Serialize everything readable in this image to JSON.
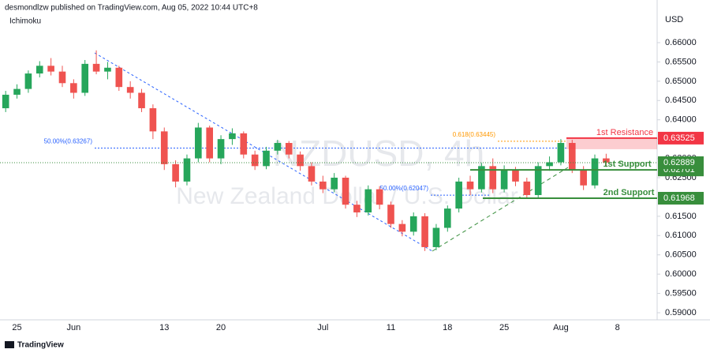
{
  "header": {
    "publisher": "desmondlzw published on TradingView.com, Aug 05, 2022 10:44 UTC+8",
    "indicator": "Ichimoku"
  },
  "chart_data": {
    "type": "candlestick",
    "title": "NZDUSD, 4h",
    "subtitle": "New Zealand Dollar / U.S. Dollar",
    "currency": "USD",
    "categories": [
      null,
      "25",
      null,
      null,
      null,
      null,
      "Jun",
      null,
      null,
      null,
      null,
      null,
      null,
      null,
      "13",
      null,
      null,
      null,
      null,
      "20",
      null,
      null,
      null,
      null,
      null,
      null,
      null,
      null,
      "Jul",
      null,
      null,
      null,
      null,
      null,
      "11",
      null,
      null,
      null,
      null,
      "18",
      null,
      null,
      null,
      null,
      "25",
      null,
      null,
      null,
      null,
      "Aug",
      null,
      null,
      null,
      null,
      "8",
      null,
      null,
      null
    ],
    "open": [
      0.643,
      0.6465,
      0.648,
      0.652,
      0.654,
      0.6525,
      0.6495,
      0.647,
      0.6545,
      0.6525,
      0.6535,
      0.6485,
      0.647,
      0.643,
      0.637,
      0.6285,
      0.624,
      0.63,
      0.638,
      0.63,
      0.635,
      0.6365,
      0.631,
      0.628,
      0.632,
      0.634,
      0.631,
      0.628,
      0.624,
      0.622,
      0.625,
      0.618,
      0.616,
      0.622,
      0.618,
      0.613,
      0.611,
      0.615,
      0.607,
      0.612,
      0.617,
      0.624,
      0.622,
      0.628,
      0.622,
      0.627,
      0.624,
      0.6205,
      0.628,
      0.629,
      0.634,
      0.627,
      0.623,
      0.63,
      null,
      null,
      null,
      null
    ],
    "high": [
      0.6475,
      0.6492,
      0.6528,
      0.6552,
      0.656,
      0.654,
      0.6505,
      0.6555,
      0.658,
      0.655,
      0.654,
      0.65,
      0.648,
      0.644,
      0.638,
      0.6295,
      0.631,
      0.6392,
      0.6385,
      0.636,
      0.6378,
      0.637,
      0.632,
      0.633,
      0.6348,
      0.6345,
      0.6318,
      0.629,
      0.6255,
      0.6262,
      0.6255,
      0.619,
      0.623,
      0.6228,
      0.6188,
      0.614,
      0.616,
      0.6158,
      0.613,
      0.6178,
      0.625,
      0.6255,
      0.6288,
      0.63,
      0.6282,
      0.6278,
      0.625,
      0.629,
      0.6305,
      0.635,
      0.6348,
      0.628,
      0.631,
      0.6312,
      null,
      null,
      null,
      null
    ],
    "low": [
      0.642,
      0.6455,
      0.647,
      0.651,
      0.6515,
      0.6485,
      0.6455,
      0.6462,
      0.6518,
      0.6505,
      0.6475,
      0.6455,
      0.642,
      0.635,
      0.627,
      0.6225,
      0.623,
      0.629,
      0.629,
      0.6285,
      0.6335,
      0.63,
      0.627,
      0.6272,
      0.631,
      0.63,
      0.6268,
      0.623,
      0.621,
      0.6212,
      0.617,
      0.6148,
      0.6152,
      0.6168,
      0.612,
      0.6098,
      0.61,
      0.606,
      0.6062,
      0.611,
      0.616,
      0.6205,
      0.6212,
      0.621,
      0.6212,
      0.6228,
      0.6196,
      0.6198,
      0.6268,
      0.6282,
      0.6262,
      0.6218,
      0.6222,
      0.6278,
      null,
      null,
      null,
      null
    ],
    "close": [
      0.6465,
      0.648,
      0.652,
      0.654,
      0.6525,
      0.6495,
      0.647,
      0.6545,
      0.6525,
      0.6535,
      0.6485,
      0.647,
      0.643,
      0.637,
      0.6285,
      0.624,
      0.63,
      0.638,
      0.63,
      0.635,
      0.6365,
      0.631,
      0.628,
      0.632,
      0.634,
      0.631,
      0.628,
      0.624,
      0.622,
      0.625,
      0.618,
      0.616,
      0.622,
      0.618,
      0.613,
      0.611,
      0.615,
      0.607,
      0.612,
      0.617,
      0.624,
      0.622,
      0.628,
      0.622,
      0.627,
      0.624,
      0.6205,
      0.628,
      0.629,
      0.634,
      0.627,
      0.623,
      0.63,
      0.6289,
      null,
      null,
      null,
      null
    ],
    "up_color": "#26a65b",
    "down_color": "#ef5350",
    "ylim": [
      0.58816,
      0.67105
    ],
    "yticks": [
      {
        "value": 0.59,
        "label": "0.59000"
      },
      {
        "value": 0.595,
        "label": "0.59500"
      },
      {
        "value": 0.6,
        "label": "0.60000"
      },
      {
        "value": 0.605,
        "label": "0.60500"
      },
      {
        "value": 0.61,
        "label": "0.61000"
      },
      {
        "value": 0.615,
        "label": "0.61500"
      },
      {
        "value": 0.62,
        "label": "0.62000"
      },
      {
        "value": 0.625,
        "label": "0.62500"
      },
      {
        "value": 0.63,
        "label": "0.63000"
      },
      {
        "value": 0.635,
        "label": "0.63500"
      },
      {
        "value": 0.64,
        "label": "0.64000"
      },
      {
        "value": 0.645,
        "label": "0.64500"
      },
      {
        "value": 0.65,
        "label": "0.65000"
      },
      {
        "value": 0.655,
        "label": "0.65500"
      },
      {
        "value": 0.66,
        "label": "0.66000"
      }
    ],
    "grid": false,
    "levels": [
      {
        "name": "1st Resistance",
        "value": 0.63525,
        "color": "#f23645"
      },
      {
        "name": "1st Support",
        "value": 0.62701,
        "color": "#388e3c"
      },
      {
        "name": "2nd Support",
        "value": 0.61968,
        "color": "#388e3c"
      }
    ],
    "fib_levels": [
      {
        "label": "50.00%(0.63267)",
        "value": 0.63267,
        "color": "#2962ff"
      },
      {
        "label": "50.00%(0.62047)",
        "value": 0.62047,
        "color": "#2962ff"
      },
      {
        "label": "0.618(0.63445)",
        "value": 0.63445,
        "color": "#ff9800"
      }
    ],
    "last_price": {
      "value": 0.62889,
      "color": "#388e3c"
    }
  },
  "footer": {
    "brand": "TradingView"
  }
}
